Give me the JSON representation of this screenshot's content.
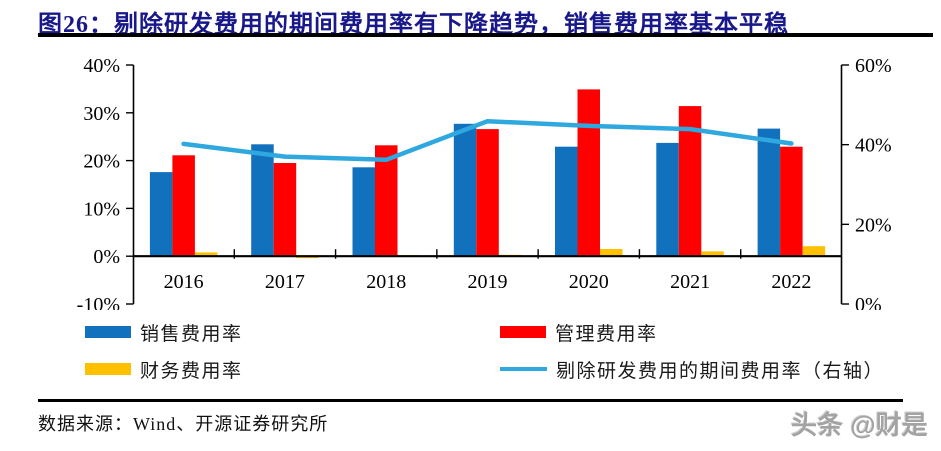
{
  "header": {
    "title": "图26：剔除研发费用的期间费用率有下降趋势，销售费用率基本平稳"
  },
  "chart_data": {
    "type": "bar",
    "subtype": "grouped-bars-with-line-overlay",
    "categories": [
      "2016",
      "2017",
      "2018",
      "2019",
      "2020",
      "2021",
      "2022"
    ],
    "series": [
      {
        "name": "销售费用率",
        "type": "bar",
        "axis": "left",
        "color": "#1271BD",
        "values": [
          17.6,
          23.4,
          18.6,
          27.7,
          22.9,
          23.7,
          26.7
        ]
      },
      {
        "name": "管理费用率",
        "type": "bar",
        "axis": "left",
        "color": "#FE0000",
        "values": [
          21.1,
          19.5,
          23.2,
          26.6,
          34.9,
          31.4,
          22.9
        ]
      },
      {
        "name": "财务费用率",
        "type": "bar",
        "axis": "left",
        "color": "#FFC000",
        "values": [
          0.8,
          -0.4,
          0.2,
          0.3,
          1.5,
          1.0,
          2.1
        ]
      },
      {
        "name": "剔除研发费用的期间费用率（右轴）",
        "type": "line",
        "axis": "right",
        "color": "#2EA8DF",
        "values": [
          40.2,
          37.0,
          36.2,
          45.9,
          44.7,
          43.9,
          40.3
        ]
      }
    ],
    "left_axis": {
      "min": -10,
      "max": 40,
      "tick_values": [
        40,
        30,
        20,
        10,
        0,
        -10
      ],
      "tick_labels": [
        "40%",
        "30%",
        "20%",
        "10%",
        "0%",
        "-10%"
      ]
    },
    "right_axis": {
      "min": 0,
      "max": 60,
      "tick_values": [
        60,
        40,
        20,
        0
      ],
      "tick_labels": [
        "60%",
        "40%",
        "20%",
        "0%"
      ]
    },
    "grid": false,
    "legend_position": "bottom"
  },
  "footer": {
    "source": "数据来源：Wind、开源证券研究所",
    "watermark": "头条 @财是"
  }
}
